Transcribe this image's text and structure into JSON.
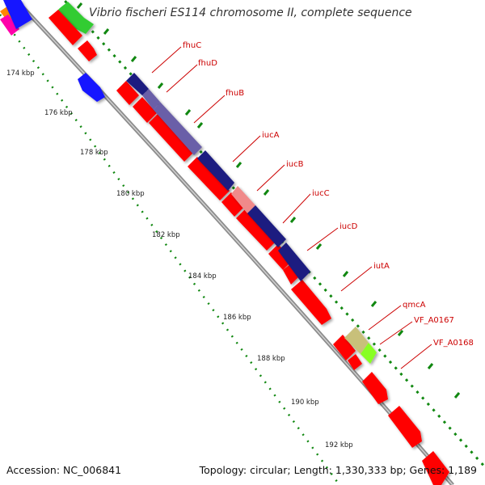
{
  "title": "Vibrio fischeri ES114 chromosome II, complete sequence",
  "footer": {
    "accession": "Accession: NC_006841",
    "summary": "Topology: circular; Length: 1,330,333 bp; Genes: 1,189"
  },
  "scale_labels": [
    "174 kbp",
    "176 kbp",
    "178 kbp",
    "180 kbp",
    "182 kbp",
    "184 kbp",
    "186 kbp",
    "188 kbp",
    "190 kbp",
    "192 kbp"
  ],
  "gene_labels": [
    "fhuC",
    "fhuD",
    "fhuB",
    "iucA",
    "iucB",
    "iucC",
    "iucD",
    "iutA",
    "qmcA",
    "VF_A0167",
    "VF_A0168"
  ],
  "colors": {
    "cds": "#ff0000",
    "highlight_navy": "#1a1a80",
    "highlight_purple": "#6b5fa8",
    "highlight_pink": "#f08a8a",
    "highlight_olive": "#c8c07a",
    "highlight_lime": "#88ff22",
    "blue_gene": "#1818ff",
    "green_gene": "#33cc33",
    "backbone": "#8c8c8c",
    "label_text": "#cc0000",
    "tick": "#118811"
  }
}
